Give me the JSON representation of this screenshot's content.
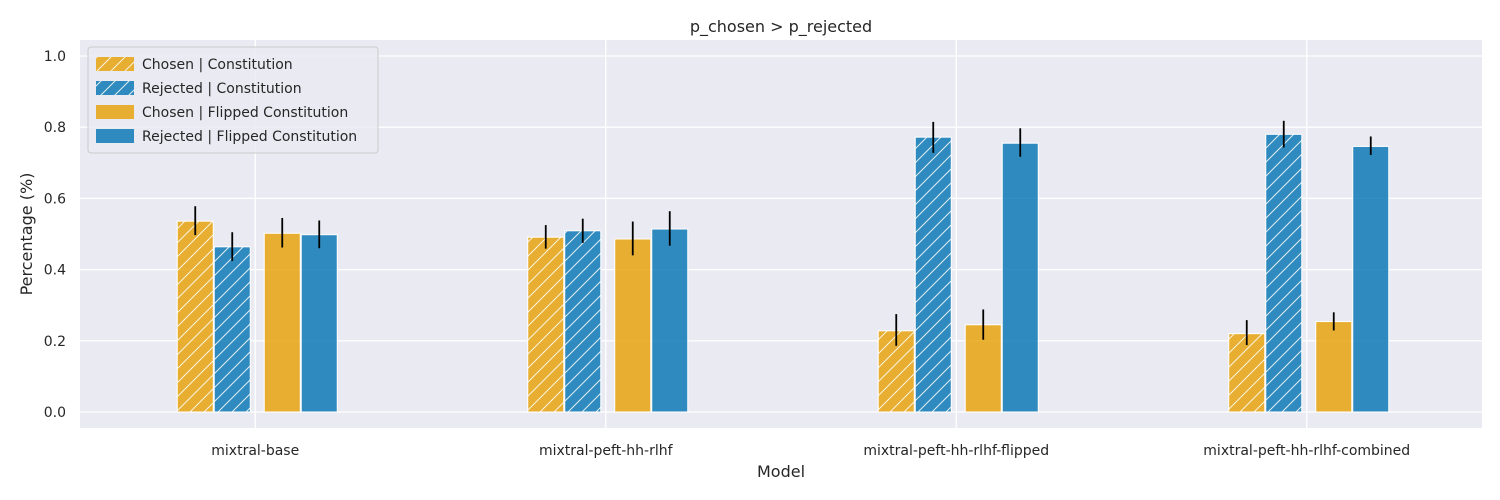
{
  "chart_data": {
    "type": "bar",
    "title": "p_chosen > p_rejected",
    "xlabel": "Model",
    "ylabel": "Percentage (%)",
    "ylim": [
      -0.045,
      1.045
    ],
    "yticks": [
      "0.0",
      "0.2",
      "0.4",
      "0.6",
      "0.8",
      "1.0"
    ],
    "grid": true,
    "legend_position": "top-left",
    "categories": [
      "mixtral-base",
      "mixtral-peft-hh-rlhf",
      "mixtral-peft-hh-rlhf-flipped",
      "mixtral-peft-hh-rlhf-combined"
    ],
    "series": [
      {
        "name": "Chosen | Constitution",
        "color": "#E69F00",
        "hatched": true,
        "values": [
          0.536,
          0.491,
          0.228,
          0.22
        ],
        "err_low": [
          0.497,
          0.459,
          0.186,
          0.188
        ],
        "err_high": [
          0.578,
          0.525,
          0.275,
          0.258
        ]
      },
      {
        "name": "Rejected | Constitution",
        "color": "#0072B2",
        "hatched": true,
        "values": [
          0.464,
          0.509,
          0.772,
          0.78
        ],
        "err_low": [
          0.424,
          0.475,
          0.728,
          0.743
        ],
        "err_high": [
          0.505,
          0.543,
          0.815,
          0.818
        ]
      },
      {
        "name": "Chosen | Flipped Constitution",
        "color": "#E69F00",
        "hatched": false,
        "values": [
          0.502,
          0.486,
          0.245,
          0.254
        ],
        "err_low": [
          0.462,
          0.44,
          0.203,
          0.229
        ],
        "err_high": [
          0.545,
          0.535,
          0.288,
          0.28
        ]
      },
      {
        "name": "Rejected | Flipped Constitution",
        "color": "#0072B2",
        "hatched": false,
        "values": [
          0.498,
          0.514,
          0.755,
          0.746
        ],
        "err_low": [
          0.46,
          0.467,
          0.717,
          0.722
        ],
        "err_high": [
          0.538,
          0.564,
          0.797,
          0.774
        ]
      }
    ]
  }
}
